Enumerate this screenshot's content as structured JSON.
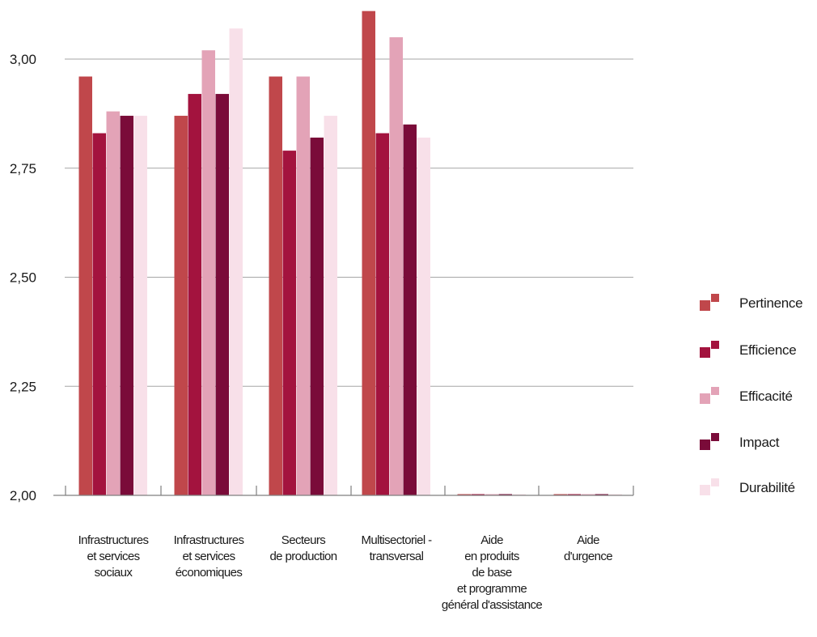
{
  "chart_data": {
    "type": "bar",
    "categories": [
      [
        "Infrastructures",
        "et services",
        "sociaux"
      ],
      [
        "Infrastructures",
        "et services",
        "économiques"
      ],
      [
        "Secteurs",
        "de production"
      ],
      [
        "Multisectoriel -",
        "transversal"
      ],
      [
        "Aide",
        "en produits",
        "de base",
        "et programme",
        "général d'assistance"
      ],
      [
        "Aide",
        "d'urgence"
      ]
    ],
    "series": [
      {
        "name": "Pertinence",
        "color": "#c0474b",
        "values": [
          2.96,
          2.87,
          2.96,
          3.11,
          2.0,
          2.0
        ]
      },
      {
        "name": "Efficience",
        "color": "#a3133e",
        "values": [
          2.83,
          2.92,
          2.79,
          2.83,
          2.0,
          2.0
        ]
      },
      {
        "name": "Efficacité",
        "color": "#e3a3b7",
        "values": [
          2.88,
          3.02,
          2.96,
          3.05,
          2.0,
          2.0
        ]
      },
      {
        "name": "Impact",
        "color": "#7a0b39",
        "values": [
          2.87,
          2.92,
          2.82,
          2.85,
          2.0,
          2.0
        ]
      },
      {
        "name": "Durabilité",
        "color": "#f8e0e9",
        "values": [
          2.87,
          3.07,
          2.87,
          2.82,
          2.0,
          2.0
        ]
      }
    ],
    "yticks": [
      "2,00",
      "2,25",
      "2,50",
      "2,75",
      "3,00"
    ],
    "ylim": [
      2.0,
      3.11
    ],
    "grid": true,
    "legend": "right"
  }
}
